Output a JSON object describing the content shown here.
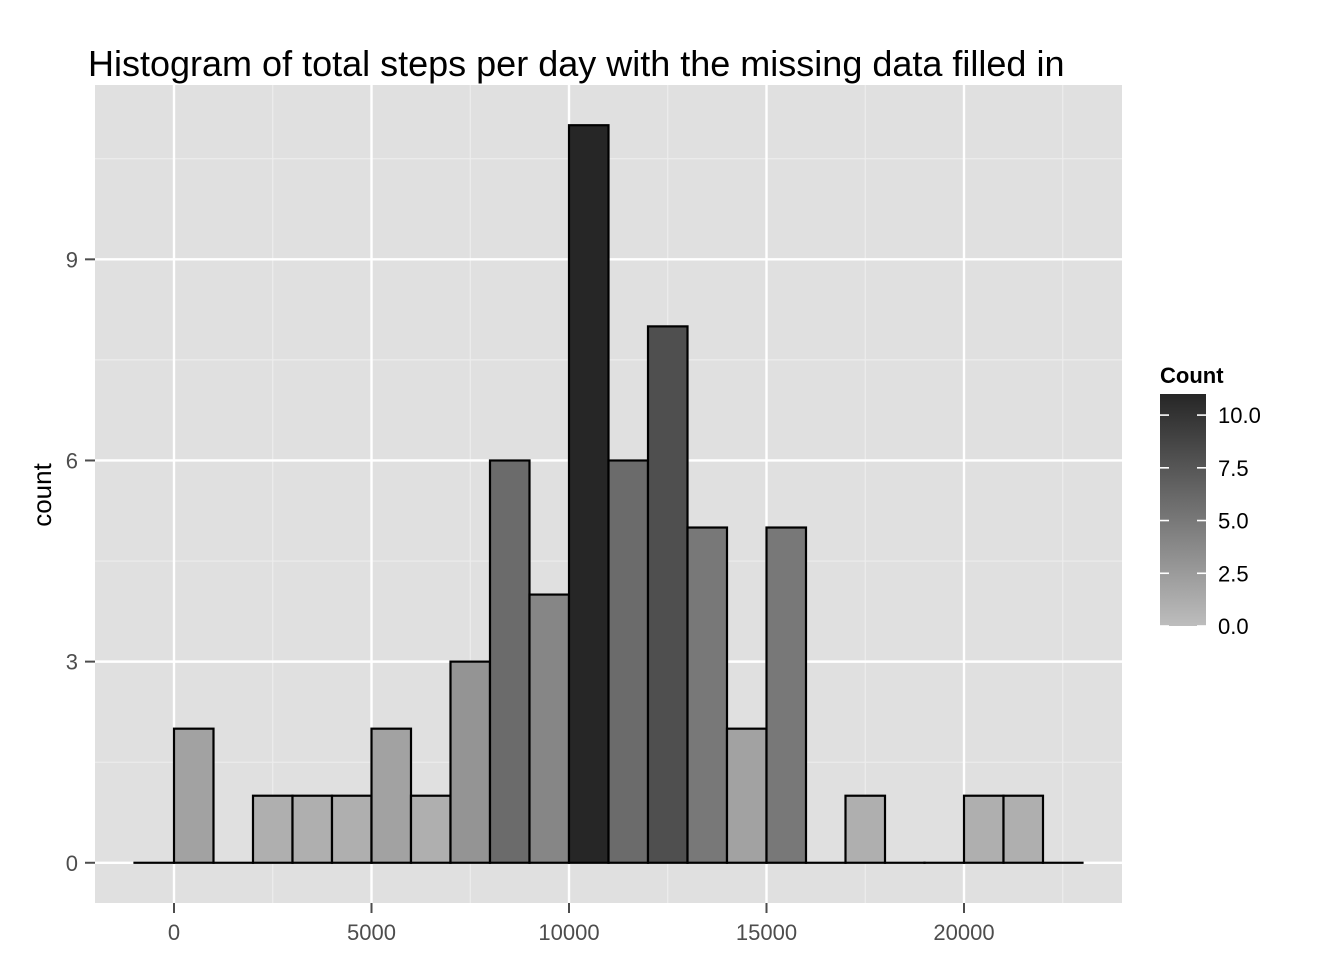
{
  "chart_data": {
    "type": "bar",
    "title": "Histogram of total steps per day with the missing data filled in",
    "xlabel": "",
    "ylabel": "count",
    "xlim": [
      -2000,
      24000
    ],
    "ylim": [
      -0.6,
      11.6
    ],
    "x_ticks": [
      0,
      5000,
      10000,
      15000,
      20000
    ],
    "x_tick_labels": [
      "0",
      "5000",
      "10000",
      "15000",
      "20000"
    ],
    "y_ticks": [
      0,
      3,
      6,
      9
    ],
    "y_tick_labels": [
      "0",
      "3",
      "6",
      "9"
    ],
    "binwidth": 1000,
    "bins": [
      {
        "x0": -1000,
        "x1": 0,
        "count": 0
      },
      {
        "x0": 0,
        "x1": 1000,
        "count": 2
      },
      {
        "x0": 1000,
        "x1": 2000,
        "count": 0
      },
      {
        "x0": 2000,
        "x1": 3000,
        "count": 1
      },
      {
        "x0": 3000,
        "x1": 4000,
        "count": 1
      },
      {
        "x0": 4000,
        "x1": 5000,
        "count": 1
      },
      {
        "x0": 5000,
        "x1": 6000,
        "count": 2
      },
      {
        "x0": 6000,
        "x1": 7000,
        "count": 1
      },
      {
        "x0": 7000,
        "x1": 8000,
        "count": 3
      },
      {
        "x0": 8000,
        "x1": 9000,
        "count": 6
      },
      {
        "x0": 9000,
        "x1": 10000,
        "count": 4
      },
      {
        "x0": 10000,
        "x1": 11000,
        "count": 11
      },
      {
        "x0": 11000,
        "x1": 12000,
        "count": 6
      },
      {
        "x0": 12000,
        "x1": 13000,
        "count": 8
      },
      {
        "x0": 13000,
        "x1": 14000,
        "count": 5
      },
      {
        "x0": 14000,
        "x1": 15000,
        "count": 2
      },
      {
        "x0": 15000,
        "x1": 16000,
        "count": 5
      },
      {
        "x0": 16000,
        "x1": 17000,
        "count": 0
      },
      {
        "x0": 17000,
        "x1": 18000,
        "count": 1
      },
      {
        "x0": 18000,
        "x1": 19000,
        "count": 0
      },
      {
        "x0": 19000,
        "x1": 20000,
        "count": 0
      },
      {
        "x0": 20000,
        "x1": 21000,
        "count": 1
      },
      {
        "x0": 21000,
        "x1": 22000,
        "count": 1
      },
      {
        "x0": 22000,
        "x1": 23000,
        "count": 0
      }
    ],
    "grid": true,
    "legend": {
      "title": "Count",
      "placement": "right",
      "type": "colorbar",
      "range": [
        0,
        11
      ],
      "ticks": [
        0,
        2.5,
        5,
        7.5,
        10
      ],
      "tick_labels": [
        "0.0",
        "2.5",
        "5.0",
        "7.5",
        "10.0"
      ],
      "color_low": "#bdbdbd",
      "color_high": "#262626"
    },
    "colors": {
      "panel_background": "#e0e0e0",
      "grid_major": "#ffffff",
      "grid_minor": "#ededed",
      "bar_outline": "#000000"
    }
  }
}
